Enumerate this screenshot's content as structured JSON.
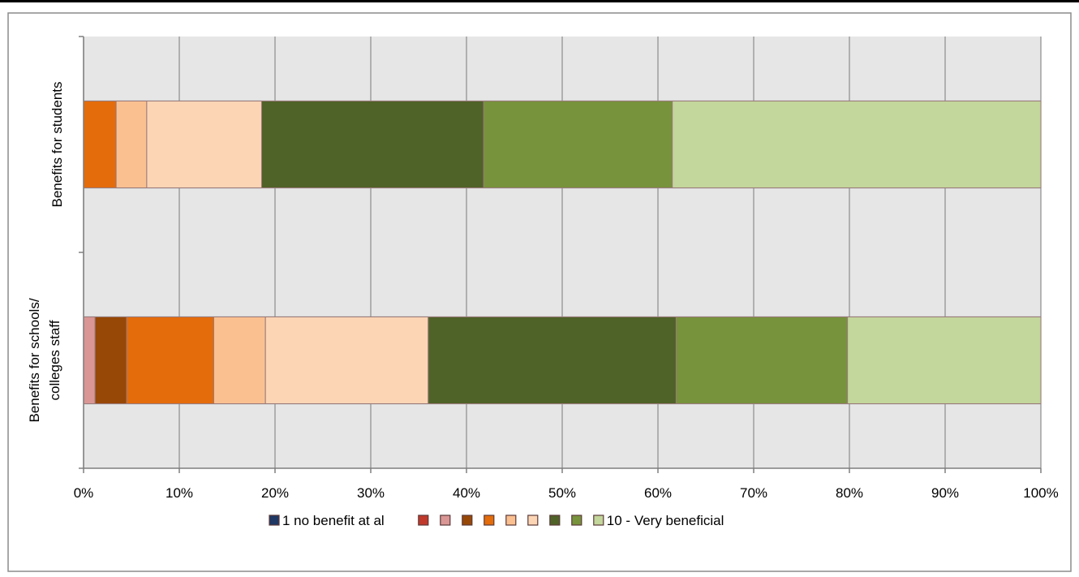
{
  "chart_data": {
    "type": "bar",
    "orientation": "horizontal",
    "stacked": "percent",
    "title": "",
    "xlabel": "",
    "ylabel": "",
    "xlim": [
      0,
      100
    ],
    "x_ticks": [
      "0%",
      "10%",
      "20%",
      "30%",
      "40%",
      "50%",
      "60%",
      "70%",
      "80%",
      "90%",
      "100%"
    ],
    "grid": true,
    "legend_position": "bottom",
    "categories": [
      "Benefits for schools/ colleges staff",
      "Benefits for students"
    ],
    "category_lines": [
      [
        "Benefits for schools/",
        "colleges staff"
      ],
      [
        "Benefits for students"
      ]
    ],
    "series": [
      {
        "name": "1 no benefit at al",
        "color": "#1f3864",
        "values": [
          0.0,
          0.0
        ]
      },
      {
        "name": "",
        "color": "#c0392b",
        "values": [
          0.0,
          0.0
        ]
      },
      {
        "name": "",
        "color": "#d99694",
        "values": [
          1.2,
          0.0
        ]
      },
      {
        "name": "",
        "color": "#974806",
        "values": [
          3.3,
          0.0
        ]
      },
      {
        "name": "",
        "color": "#e46c0a",
        "values": [
          9.1,
          3.4
        ]
      },
      {
        "name": "",
        "color": "#fac090",
        "values": [
          5.4,
          3.2
        ]
      },
      {
        "name": "",
        "color": "#fcd5b5",
        "values": [
          17.0,
          12.0
        ]
      },
      {
        "name": "",
        "color": "#4f6228",
        "values": [
          25.9,
          23.2
        ]
      },
      {
        "name": "",
        "color": "#77933c",
        "values": [
          17.9,
          19.7
        ]
      },
      {
        "name": "10 - Very beneficial",
        "color": "#c3d69b",
        "values": [
          20.2,
          38.5
        ]
      }
    ]
  }
}
